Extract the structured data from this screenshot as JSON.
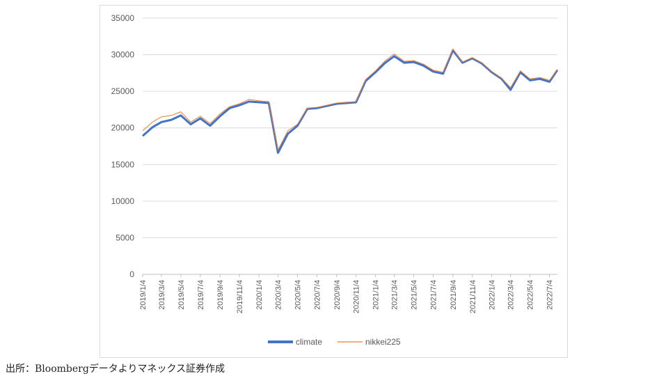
{
  "chart_data": {
    "type": "line",
    "ylim": [
      0,
      35000
    ],
    "y_ticks": [
      "0",
      "5000",
      "10000",
      "15000",
      "20000",
      "25000",
      "30000",
      "35000"
    ],
    "x_tick_labels": [
      "2019/1/4",
      "2019/3/4",
      "2019/5/4",
      "2019/7/4",
      "2019/9/4",
      "2019/11/4",
      "2020/1/4",
      "2020/3/4",
      "2020/5/4",
      "2020/7/4",
      "2020/9/4",
      "2020/11/4",
      "2021/1/4",
      "2021/3/4",
      "2021/5/4",
      "2021/7/4",
      "2021/9/4",
      "2021/11/4",
      "2022/1/4",
      "2022/3/4",
      "2022/5/4",
      "2022/7/4"
    ],
    "x": [
      "2019/1/4",
      "2019/2/4",
      "2019/3/4",
      "2019/4/4",
      "2019/5/4",
      "2019/6/4",
      "2019/7/4",
      "2019/8/4",
      "2019/9/4",
      "2019/10/4",
      "2019/11/4",
      "2019/12/4",
      "2020/1/4",
      "2020/2/4",
      "2020/3/4",
      "2020/4/4",
      "2020/5/4",
      "2020/6/4",
      "2020/7/4",
      "2020/8/4",
      "2020/9/4",
      "2020/10/4",
      "2020/11/4",
      "2020/12/4",
      "2021/1/4",
      "2021/2/4",
      "2021/3/4",
      "2021/4/4",
      "2021/5/4",
      "2021/6/4",
      "2021/7/4",
      "2021/8/4",
      "2021/9/4",
      "2021/10/4",
      "2021/11/4",
      "2021/12/4",
      "2022/1/4",
      "2022/2/4",
      "2022/3/4",
      "2022/4/4",
      "2022/5/4",
      "2022/6/4",
      "2022/7/4",
      "2022/7/29"
    ],
    "series": [
      {
        "name": "climate",
        "color": "#4472c4",
        "values": [
          18900,
          20100,
          20800,
          21100,
          21700,
          20500,
          21300,
          20300,
          21600,
          22700,
          23100,
          23600,
          23500,
          23400,
          16600,
          19200,
          20300,
          22600,
          22700,
          23000,
          23300,
          23400,
          23500,
          26400,
          27600,
          28900,
          29800,
          28900,
          29000,
          28500,
          27700,
          27400,
          30600,
          28900,
          29500,
          28800,
          27600,
          26700,
          25200,
          27600,
          26500,
          26700,
          26300,
          27900
        ]
      },
      {
        "name": "nikkei225",
        "color": "#ed7d31",
        "values": [
          19600,
          20800,
          21500,
          21700,
          22200,
          20800,
          21600,
          20600,
          21900,
          22900,
          23300,
          23900,
          23700,
          23600,
          17000,
          19600,
          20500,
          22700,
          22800,
          23100,
          23400,
          23500,
          23600,
          26600,
          27800,
          29200,
          30100,
          29100,
          29200,
          28700,
          27900,
          27600,
          30800,
          29000,
          29600,
          28900,
          27700,
          26800,
          25500,
          27800,
          26700,
          26900,
          26500,
          28000
        ]
      }
    ],
    "legend": {
      "position": "bottom",
      "entries": [
        "climate",
        "nikkei225"
      ]
    },
    "grid": "horizontal"
  },
  "footer": {
    "source": "出所：Bloombergデータよりマネックス証券作成"
  }
}
